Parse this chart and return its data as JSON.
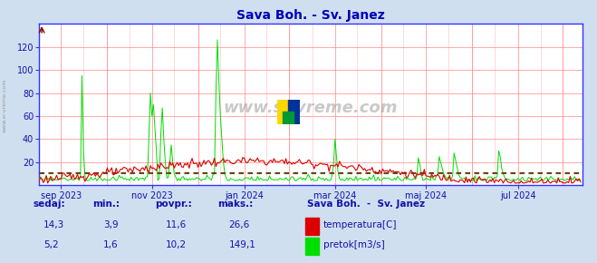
{
  "title": "Sava Boh. - Sv. Janez",
  "title_color": "#0000bb",
  "bg_color": "#d0dff0",
  "plot_bg_color": "#ffffff",
  "grid_color_h": "#ff8888",
  "grid_color_v_major": "#ff8888",
  "grid_color_v_minor": "#ffbbbb",
  "temp_color": "#dd0000",
  "flow_color": "#00dd00",
  "avg_temp_color": "#cc0000",
  "avg_flow_color": "#008800",
  "border_color": "#3333ff",
  "tick_label_color": "#1111aa",
  "watermark_text": "www.si-vreme.com",
  "sidebar_text": "www.si-vreme.com",
  "temp_avg": 11.6,
  "flow_avg": 10.2,
  "ylim_min": 0,
  "ylim_max": 140,
  "yticks": [
    20,
    40,
    60,
    80,
    100,
    120
  ],
  "xtick_labels": [
    "sep 2023",
    "nov 2023",
    "jan 2024",
    "mar 2024",
    "maj 2024",
    "jul 2024"
  ],
  "xtick_positions": [
    15,
    76,
    138,
    199,
    260,
    322
  ],
  "table_headers": [
    "sedaj:",
    "min.:",
    "povpr.:",
    "maks.:"
  ],
  "table_row1": [
    "14,3",
    "3,9",
    "11,6",
    "26,6"
  ],
  "table_row2": [
    "5,2",
    "1,6",
    "10,2",
    "149,1"
  ],
  "legend_title": "Sava Boh.  -  Sv. Janez",
  "legend_items": [
    "temperatura[C]",
    "pretok[m3/s]"
  ]
}
